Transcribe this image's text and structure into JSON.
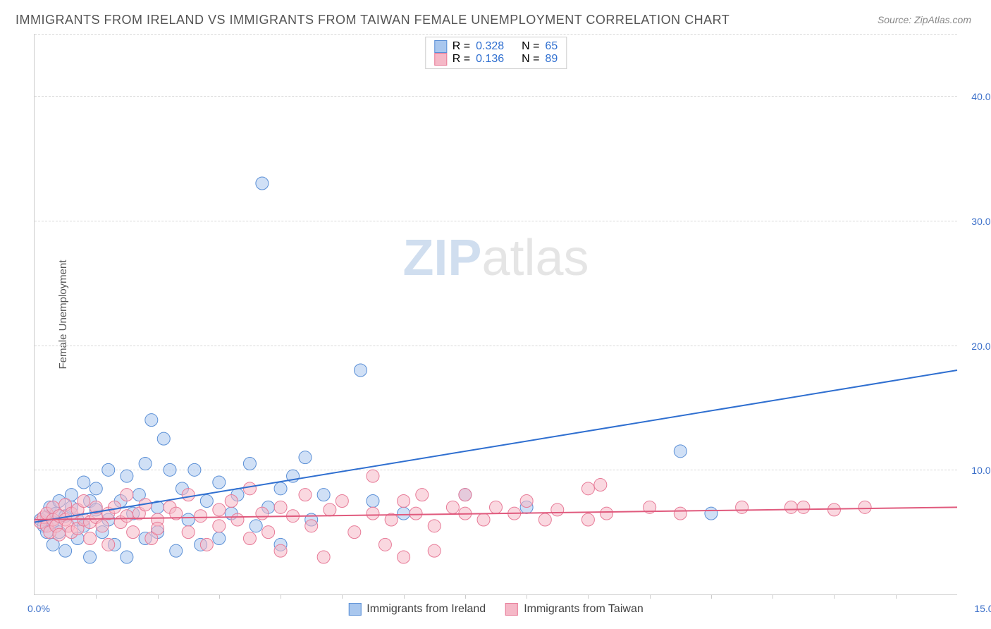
{
  "title": "IMMIGRANTS FROM IRELAND VS IMMIGRANTS FROM TAIWAN FEMALE UNEMPLOYMENT CORRELATION CHART",
  "source": "Source: ZipAtlas.com",
  "ylabel": "Female Unemployment",
  "watermark_prefix": "ZIP",
  "watermark_suffix": "atlas",
  "chart": {
    "type": "scatter",
    "xlim": [
      0,
      15
    ],
    "ylim": [
      0,
      45
    ],
    "x_axis_label_left": "0.0%",
    "x_axis_label_right": "15.0%",
    "x_axis_label_color": "#3b6fc9",
    "xticks": [
      1,
      2,
      3,
      4,
      5,
      6,
      7,
      8,
      9,
      10,
      11,
      12,
      13,
      14
    ],
    "gridlines_y": [
      10,
      20,
      30,
      40
    ],
    "ytick_labels": [
      "10.0%",
      "20.0%",
      "30.0%",
      "40.0%"
    ],
    "ytick_color": "#3b6fc9",
    "grid_color": "#d8d8d8",
    "background_color": "#ffffff",
    "marker_radius": 9,
    "marker_opacity": 0.55,
    "line_width": 2,
    "series": [
      {
        "name": "Immigrants from Ireland",
        "color_fill": "#a9c7ee",
        "color_stroke": "#5a8fd6",
        "line_color": "#2f6fd0",
        "R": "0.328",
        "N": "65",
        "trend": {
          "x1": 0,
          "y1": 5.8,
          "x2": 15,
          "y2": 18.0
        },
        "points": [
          [
            0.1,
            6.0
          ],
          [
            0.15,
            5.5
          ],
          [
            0.2,
            6.2
          ],
          [
            0.2,
            5.0
          ],
          [
            0.25,
            7.0
          ],
          [
            0.3,
            5.8
          ],
          [
            0.3,
            4.0
          ],
          [
            0.35,
            6.5
          ],
          [
            0.4,
            5.0
          ],
          [
            0.4,
            7.5
          ],
          [
            0.5,
            6.3
          ],
          [
            0.5,
            3.5
          ],
          [
            0.6,
            7.0
          ],
          [
            0.6,
            8.0
          ],
          [
            0.7,
            6.0
          ],
          [
            0.7,
            4.5
          ],
          [
            0.8,
            9.0
          ],
          [
            0.8,
            5.5
          ],
          [
            0.9,
            7.5
          ],
          [
            0.9,
            3.0
          ],
          [
            1.0,
            6.8
          ],
          [
            1.0,
            8.5
          ],
          [
            1.1,
            5.0
          ],
          [
            1.2,
            10.0
          ],
          [
            1.2,
            6.0
          ],
          [
            1.3,
            4.0
          ],
          [
            1.4,
            7.5
          ],
          [
            1.5,
            9.5
          ],
          [
            1.5,
            3.0
          ],
          [
            1.6,
            6.5
          ],
          [
            1.7,
            8.0
          ],
          [
            1.8,
            10.5
          ],
          [
            1.8,
            4.5
          ],
          [
            1.9,
            14.0
          ],
          [
            2.0,
            7.0
          ],
          [
            2.0,
            5.0
          ],
          [
            2.1,
            12.5
          ],
          [
            2.2,
            10.0
          ],
          [
            2.3,
            3.5
          ],
          [
            2.4,
            8.5
          ],
          [
            2.5,
            6.0
          ],
          [
            2.6,
            10.0
          ],
          [
            2.7,
            4.0
          ],
          [
            2.8,
            7.5
          ],
          [
            3.0,
            9.0
          ],
          [
            3.0,
            4.5
          ],
          [
            3.2,
            6.5
          ],
          [
            3.3,
            8.0
          ],
          [
            3.5,
            10.5
          ],
          [
            3.6,
            5.5
          ],
          [
            3.7,
            33.0
          ],
          [
            3.8,
            7.0
          ],
          [
            4.0,
            8.5
          ],
          [
            4.0,
            4.0
          ],
          [
            4.2,
            9.5
          ],
          [
            4.4,
            11.0
          ],
          [
            4.5,
            6.0
          ],
          [
            4.7,
            8.0
          ],
          [
            5.3,
            18.0
          ],
          [
            5.5,
            7.5
          ],
          [
            6.0,
            6.5
          ],
          [
            7.0,
            8.0
          ],
          [
            8.0,
            7.0
          ],
          [
            10.5,
            11.5
          ],
          [
            11.0,
            6.5
          ]
        ]
      },
      {
        "name": "Immigrants from Taiwan",
        "color_fill": "#f5b8c7",
        "color_stroke": "#e77a97",
        "line_color": "#e05a7d",
        "R": "0.136",
        "N": "89",
        "trend": {
          "x1": 0,
          "y1": 6.0,
          "x2": 15,
          "y2": 7.0
        },
        "points": [
          [
            0.1,
            5.8
          ],
          [
            0.15,
            6.2
          ],
          [
            0.2,
            5.5
          ],
          [
            0.2,
            6.5
          ],
          [
            0.25,
            5.0
          ],
          [
            0.3,
            6.0
          ],
          [
            0.3,
            7.0
          ],
          [
            0.35,
            5.5
          ],
          [
            0.4,
            6.3
          ],
          [
            0.4,
            4.8
          ],
          [
            0.5,
            6.0
          ],
          [
            0.5,
            7.2
          ],
          [
            0.55,
            5.5
          ],
          [
            0.6,
            6.5
          ],
          [
            0.6,
            5.0
          ],
          [
            0.7,
            6.8
          ],
          [
            0.7,
            5.3
          ],
          [
            0.8,
            6.0
          ],
          [
            0.8,
            7.5
          ],
          [
            0.9,
            5.8
          ],
          [
            0.9,
            4.5
          ],
          [
            1.0,
            6.2
          ],
          [
            1.0,
            7.0
          ],
          [
            1.1,
            5.5
          ],
          [
            1.2,
            6.5
          ],
          [
            1.2,
            4.0
          ],
          [
            1.3,
            7.0
          ],
          [
            1.4,
            5.8
          ],
          [
            1.5,
            6.3
          ],
          [
            1.5,
            8.0
          ],
          [
            1.6,
            5.0
          ],
          [
            1.7,
            6.5
          ],
          [
            1.8,
            7.2
          ],
          [
            1.9,
            4.5
          ],
          [
            2.0,
            6.0
          ],
          [
            2.0,
            5.3
          ],
          [
            2.2,
            7.0
          ],
          [
            2.3,
            6.5
          ],
          [
            2.5,
            5.0
          ],
          [
            2.5,
            8.0
          ],
          [
            2.7,
            6.3
          ],
          [
            2.8,
            4.0
          ],
          [
            3.0,
            6.8
          ],
          [
            3.0,
            5.5
          ],
          [
            3.2,
            7.5
          ],
          [
            3.3,
            6.0
          ],
          [
            3.5,
            4.5
          ],
          [
            3.5,
            8.5
          ],
          [
            3.7,
            6.5
          ],
          [
            3.8,
            5.0
          ],
          [
            4.0,
            7.0
          ],
          [
            4.0,
            3.5
          ],
          [
            4.2,
            6.3
          ],
          [
            4.4,
            8.0
          ],
          [
            4.5,
            5.5
          ],
          [
            4.7,
            3.0
          ],
          [
            4.8,
            6.8
          ],
          [
            5.0,
            7.5
          ],
          [
            5.2,
            5.0
          ],
          [
            5.5,
            6.5
          ],
          [
            5.5,
            9.5
          ],
          [
            5.7,
            4.0
          ],
          [
            5.8,
            6.0
          ],
          [
            6.0,
            7.5
          ],
          [
            6.0,
            3.0
          ],
          [
            6.2,
            6.5
          ],
          [
            6.3,
            8.0
          ],
          [
            6.5,
            5.5
          ],
          [
            6.5,
            3.5
          ],
          [
            6.8,
            7.0
          ],
          [
            7.0,
            6.5
          ],
          [
            7.0,
            8.0
          ],
          [
            7.3,
            6.0
          ],
          [
            7.5,
            7.0
          ],
          [
            7.8,
            6.5
          ],
          [
            8.0,
            7.5
          ],
          [
            8.3,
            6.0
          ],
          [
            8.5,
            6.8
          ],
          [
            9.0,
            8.5
          ],
          [
            9.0,
            6.0
          ],
          [
            9.2,
            8.8
          ],
          [
            9.3,
            6.5
          ],
          [
            10.0,
            7.0
          ],
          [
            10.5,
            6.5
          ],
          [
            11.5,
            7.0
          ],
          [
            12.3,
            7.0
          ],
          [
            12.5,
            7.0
          ],
          [
            13.0,
            6.8
          ],
          [
            13.5,
            7.0
          ]
        ]
      }
    ]
  },
  "statbox": {
    "label_R": "R =",
    "label_N": "N =",
    "value_color": "#2f6fd0",
    "text_color": "#444"
  },
  "legend": {
    "series1": "Immigrants from Ireland",
    "series2": "Immigrants from Taiwan"
  }
}
